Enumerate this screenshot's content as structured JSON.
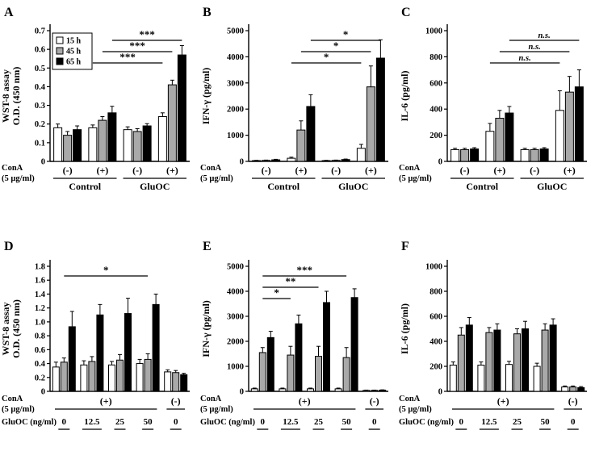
{
  "series_colors": [
    "#ffffff",
    "#a9a9a9",
    "#000000"
  ],
  "legend": {
    "items": [
      "15 h",
      "45 h",
      "65 h"
    ]
  },
  "chart_data": [
    {
      "label": "A",
      "type": "bar",
      "ylabel_lines": [
        "WST-8 assay",
        "O.D. (450 nm)"
      ],
      "ylim": [
        0,
        0.7
      ],
      "yticks": [
        "0",
        "0.1",
        "0.2",
        "0.3",
        "0.4",
        "0.5",
        "0.6",
        "0.7"
      ],
      "series": [
        "15 h",
        "45 h",
        "65 h"
      ],
      "legend": true,
      "groups": [
        {
          "values": [
            0.18,
            0.14,
            0.17
          ],
          "errors": [
            0.02,
            0.02,
            0.02
          ]
        },
        {
          "values": [
            0.18,
            0.22,
            0.26
          ],
          "errors": [
            0.015,
            0.02,
            0.035
          ]
        },
        {
          "values": [
            0.17,
            0.16,
            0.19
          ],
          "errors": [
            0.015,
            0.015,
            0.012
          ]
        },
        {
          "values": [
            0.24,
            0.41,
            0.57
          ],
          "errors": [
            0.02,
            0.025,
            0.05
          ]
        }
      ],
      "xaxis": {
        "style": "top",
        "row_label_lines": [
          "ConA",
          "(5 µg/ml)"
        ],
        "group_labels": [
          "(-)",
          "(+)",
          "(-)",
          "(+)"
        ],
        "sections": [
          {
            "label": "Control",
            "from": 0,
            "to": 1
          },
          {
            "label": "GluOC",
            "from": 2,
            "to": 3
          }
        ]
      },
      "significance": [
        {
          "g1": 1,
          "b1": 0,
          "g2": 3,
          "b2": 0,
          "text": "***"
        },
        {
          "g1": 1,
          "b1": 1,
          "g2": 3,
          "b2": 1,
          "text": "***"
        },
        {
          "g1": 1,
          "b1": 2,
          "g2": 3,
          "b2": 2,
          "text": "***"
        }
      ]
    },
    {
      "label": "B",
      "type": "bar",
      "ylabel_lines": [
        "IFN-γ (pg/ml)"
      ],
      "ylim": [
        0,
        5000
      ],
      "yticks": [
        "0",
        "1000",
        "2000",
        "3000",
        "4000",
        "5000"
      ],
      "series": [
        "15 h",
        "45 h",
        "65 h"
      ],
      "legend": false,
      "groups": [
        {
          "values": [
            30,
            40,
            60
          ],
          "errors": [
            10,
            10,
            20
          ]
        },
        {
          "values": [
            120,
            1200,
            2100
          ],
          "errors": [
            40,
            350,
            450
          ]
        },
        {
          "values": [
            30,
            40,
            70
          ],
          "errors": [
            10,
            10,
            20
          ]
        },
        {
          "values": [
            500,
            2850,
            3950
          ],
          "errors": [
            150,
            800,
            700
          ]
        }
      ],
      "xaxis": {
        "style": "top",
        "row_label_lines": [
          "ConA",
          "(5 µg/ml)"
        ],
        "group_labels": [
          "(-)",
          "(+)",
          "(-)",
          "(+)"
        ],
        "sections": [
          {
            "label": "Control",
            "from": 0,
            "to": 1
          },
          {
            "label": "GluOC",
            "from": 2,
            "to": 3
          }
        ]
      },
      "significance": [
        {
          "g1": 1,
          "b1": 0,
          "g2": 3,
          "b2": 0,
          "text": "*"
        },
        {
          "g1": 1,
          "b1": 1,
          "g2": 3,
          "b2": 1,
          "text": "*"
        },
        {
          "g1": 1,
          "b1": 2,
          "g2": 3,
          "b2": 2,
          "text": "*"
        }
      ]
    },
    {
      "label": "C",
      "type": "bar",
      "ylabel_lines": [
        "IL-6 (pg/ml)"
      ],
      "ylim": [
        0,
        1000
      ],
      "yticks": [
        "0",
        "200",
        "400",
        "600",
        "800",
        "1000"
      ],
      "series": [
        "15 h",
        "45 h",
        "65 h"
      ],
      "legend": false,
      "groups": [
        {
          "values": [
            90,
            90,
            95
          ],
          "errors": [
            10,
            10,
            10
          ]
        },
        {
          "values": [
            230,
            330,
            370
          ],
          "errors": [
            60,
            60,
            50
          ]
        },
        {
          "values": [
            90,
            90,
            95
          ],
          "errors": [
            10,
            10,
            10
          ]
        },
        {
          "values": [
            390,
            530,
            570
          ],
          "errors": [
            150,
            120,
            130
          ]
        }
      ],
      "xaxis": {
        "style": "top",
        "row_label_lines": [
          "ConA",
          "(5 µg/ml)"
        ],
        "group_labels": [
          "(-)",
          "(+)",
          "(-)",
          "(+)"
        ],
        "sections": [
          {
            "label": "Control",
            "from": 0,
            "to": 1
          },
          {
            "label": "GluOC",
            "from": 2,
            "to": 3
          }
        ]
      },
      "significance": [
        {
          "g1": 1,
          "b1": 0,
          "g2": 3,
          "b2": 0,
          "text": "n.s."
        },
        {
          "g1": 1,
          "b1": 1,
          "g2": 3,
          "b2": 1,
          "text": "n.s."
        },
        {
          "g1": 1,
          "b1": 2,
          "g2": 3,
          "b2": 2,
          "text": "n.s."
        }
      ]
    },
    {
      "label": "D",
      "type": "bar",
      "ylabel_lines": [
        "WST-8 assay",
        "O.D. (450 nm)"
      ],
      "ylim": [
        0,
        1.8
      ],
      "yticks": [
        "0",
        "0.2",
        "0.4",
        "0.6",
        "0.8",
        "1.0",
        "1.2",
        "1.4",
        "1.6",
        "1.8"
      ],
      "series": [
        "15 h",
        "45 h",
        "65 h"
      ],
      "legend": false,
      "groups": [
        {
          "values": [
            0.35,
            0.42,
            0.93
          ],
          "errors": [
            0.07,
            0.06,
            0.22
          ]
        },
        {
          "values": [
            0.38,
            0.43,
            1.1
          ],
          "errors": [
            0.06,
            0.07,
            0.15
          ]
        },
        {
          "values": [
            0.38,
            0.45,
            1.12
          ],
          "errors": [
            0.05,
            0.08,
            0.22
          ]
        },
        {
          "values": [
            0.4,
            0.46,
            1.25
          ],
          "errors": [
            0.06,
            0.08,
            0.15
          ]
        },
        {
          "values": [
            0.28,
            0.27,
            0.24
          ],
          "errors": [
            0.03,
            0.03,
            0.02
          ]
        }
      ],
      "xaxis": {
        "style": "bottom",
        "rows": [
          {
            "label_lines": [
              "ConA",
              "(5 µg/ml)"
            ],
            "spans": [
              {
                "text": "(+)",
                "from": 0,
                "to": 3
              },
              {
                "text": "(-)",
                "from": 4,
                "to": 4
              }
            ]
          },
          {
            "label_lines": [
              "GluOC (ng/ml)"
            ],
            "per_group": [
              "0",
              "12.5",
              "25",
              "50",
              "0"
            ]
          }
        ]
      },
      "significance": [
        {
          "g1": 0,
          "b1": 1,
          "g2": 3,
          "b2": 1,
          "text": "*"
        }
      ]
    },
    {
      "label": "E",
      "type": "bar",
      "ylabel_lines": [
        "IFN-γ (pg/ml)"
      ],
      "ylim": [
        0,
        5000
      ],
      "yticks": [
        "0",
        "1000",
        "2000",
        "3000",
        "4000",
        "5000"
      ],
      "series": [
        "15 h",
        "45 h",
        "65 h"
      ],
      "legend": false,
      "groups": [
        {
          "values": [
            100,
            1550,
            2150
          ],
          "errors": [
            30,
            200,
            250
          ]
        },
        {
          "values": [
            100,
            1450,
            2700
          ],
          "errors": [
            30,
            350,
            350
          ]
        },
        {
          "values": [
            100,
            1400,
            3550
          ],
          "errors": [
            30,
            400,
            450
          ]
        },
        {
          "values": [
            100,
            1350,
            3750
          ],
          "errors": [
            30,
            400,
            350
          ]
        },
        {
          "values": [
            40,
            40,
            50
          ],
          "errors": [
            10,
            10,
            10
          ]
        }
      ],
      "xaxis": {
        "style": "bottom",
        "rows": [
          {
            "label_lines": [
              "ConA",
              "(5 µg/ml)"
            ],
            "spans": [
              {
                "text": "(+)",
                "from": 0,
                "to": 3
              },
              {
                "text": "(-)",
                "from": 4,
                "to": 4
              }
            ]
          },
          {
            "label_lines": [
              "GluOC (ng/ml)"
            ],
            "per_group": [
              "0",
              "12.5",
              "25",
              "50",
              "0"
            ]
          }
        ]
      },
      "significance": [
        {
          "g1": 0,
          "b1": 1,
          "g2": 1,
          "b2": 1,
          "text": "*"
        },
        {
          "g1": 0,
          "b1": 1,
          "g2": 2,
          "b2": 1,
          "text": "**"
        },
        {
          "g1": 0,
          "b1": 1,
          "g2": 3,
          "b2": 1,
          "text": "***"
        }
      ]
    },
    {
      "label": "F",
      "type": "bar",
      "ylabel_lines": [
        "IL-6 (pg/ml)"
      ],
      "ylim": [
        0,
        1000
      ],
      "yticks": [
        "0",
        "200",
        "400",
        "600",
        "800",
        "1000"
      ],
      "series": [
        "15 h",
        "45 h",
        "65 h"
      ],
      "legend": false,
      "groups": [
        {
          "values": [
            210,
            450,
            530
          ],
          "errors": [
            25,
            60,
            60
          ]
        },
        {
          "values": [
            210,
            470,
            490
          ],
          "errors": [
            25,
            40,
            50
          ]
        },
        {
          "values": [
            215,
            460,
            500
          ],
          "errors": [
            25,
            40,
            60
          ]
        },
        {
          "values": [
            200,
            490,
            530
          ],
          "errors": [
            25,
            50,
            50
          ]
        },
        {
          "values": [
            35,
            35,
            30
          ],
          "errors": [
            8,
            8,
            8
          ]
        }
      ],
      "xaxis": {
        "style": "bottom",
        "rows": [
          {
            "label_lines": [
              "ConA",
              "(5 µg/ml)"
            ],
            "spans": [
              {
                "text": "(+)",
                "from": 0,
                "to": 3
              },
              {
                "text": "(-)",
                "from": 4,
                "to": 4
              }
            ]
          },
          {
            "label_lines": [
              "GluOC (ng/ml)"
            ],
            "per_group": [
              "0",
              "12.5",
              "25",
              "50",
              "0"
            ]
          }
        ]
      },
      "significance": []
    }
  ]
}
